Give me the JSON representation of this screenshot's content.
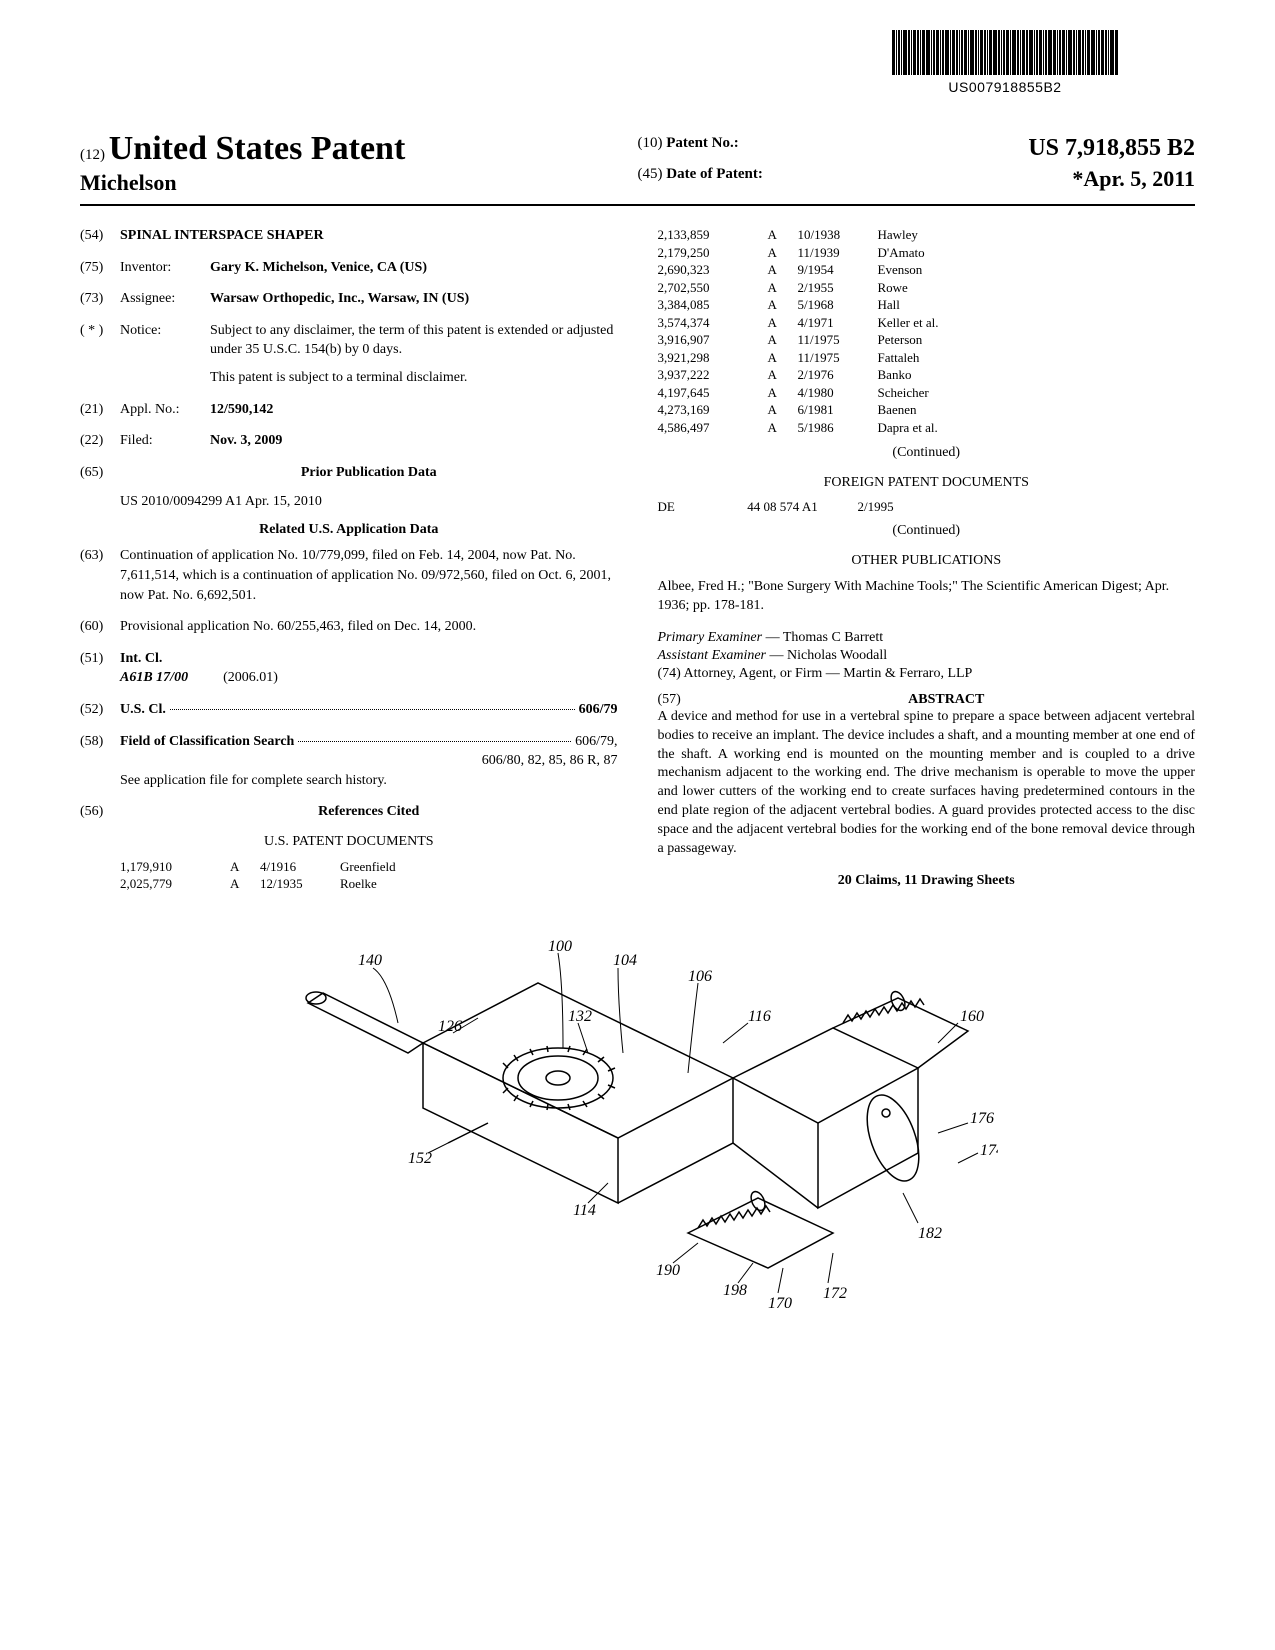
{
  "barcode": {
    "text": "US007918855B2"
  },
  "header": {
    "left": {
      "code": "(12)",
      "country": "United States Patent",
      "author": "Michelson"
    },
    "right": {
      "patent_no_code": "(10)",
      "patent_no_label": "Patent No.:",
      "patent_no_value": "US 7,918,855 B2",
      "date_code": "(45)",
      "date_label": "Date of Patent:",
      "date_value": "*Apr. 5, 2011"
    }
  },
  "left_col": {
    "title": {
      "code": "(54)",
      "value": "SPINAL INTERSPACE SHAPER"
    },
    "inventor": {
      "code": "(75)",
      "label": "Inventor:",
      "value": "Gary K. Michelson, Venice, CA (US)"
    },
    "assignee": {
      "code": "(73)",
      "label": "Assignee:",
      "value": "Warsaw Orthopedic, Inc., Warsaw, IN (US)"
    },
    "notice": {
      "code": "( * )",
      "label": "Notice:",
      "p1": "Subject to any disclaimer, the term of this patent is extended or adjusted under 35 U.S.C. 154(b) by 0 days.",
      "p2": "This patent is subject to a terminal disclaimer."
    },
    "appl_no": {
      "code": "(21)",
      "label": "Appl. No.:",
      "value": "12/590,142"
    },
    "filed": {
      "code": "(22)",
      "label": "Filed:",
      "value": "Nov. 3, 2009"
    },
    "prior_pub": {
      "code": "(65)",
      "heading": "Prior Publication Data",
      "line": "US 2010/0094299 A1      Apr. 15, 2010"
    },
    "related": {
      "heading": "Related U.S. Application Data",
      "p63_code": "(63)",
      "p63": "Continuation of application No. 10/779,099, filed on Feb. 14, 2004, now Pat. No. 7,611,514, which is a continuation of application No. 09/972,560, filed on Oct. 6, 2001, now Pat. No. 6,692,501.",
      "p60_code": "(60)",
      "p60": "Provisional application No. 60/255,463, filed on Dec. 14, 2000."
    },
    "int_cl": {
      "code": "(51)",
      "label": "Int. Cl.",
      "class": "A61B 17/00",
      "year": "(2006.01)"
    },
    "us_cl": {
      "code": "(52)",
      "label": "U.S. Cl.",
      "value": "606/79"
    },
    "field_search": {
      "code": "(58)",
      "label": "Field of Classification Search",
      "value1": "606/79,",
      "value2": "606/80, 82, 85, 86 R, 87",
      "note": "See application file for complete search history."
    },
    "refs_cited": {
      "code": "(56)",
      "heading": "References Cited",
      "subheading": "U.S. PATENT DOCUMENTS",
      "rows": [
        {
          "num": "1,179,910",
          "type": "A",
          "date": "4/1916",
          "name": "Greenfield"
        },
        {
          "num": "2,025,779",
          "type": "A",
          "date": "12/1935",
          "name": "Roelke"
        }
      ]
    }
  },
  "right_col": {
    "refs_cont": [
      {
        "num": "2,133,859",
        "type": "A",
        "date": "10/1938",
        "name": "Hawley"
      },
      {
        "num": "2,179,250",
        "type": "A",
        "date": "11/1939",
        "name": "D'Amato"
      },
      {
        "num": "2,690,323",
        "type": "A",
        "date": "9/1954",
        "name": "Evenson"
      },
      {
        "num": "2,702,550",
        "type": "A",
        "date": "2/1955",
        "name": "Rowe"
      },
      {
        "num": "3,384,085",
        "type": "A",
        "date": "5/1968",
        "name": "Hall"
      },
      {
        "num": "3,574,374",
        "type": "A",
        "date": "4/1971",
        "name": "Keller et al."
      },
      {
        "num": "3,916,907",
        "type": "A",
        "date": "11/1975",
        "name": "Peterson"
      },
      {
        "num": "3,921,298",
        "type": "A",
        "date": "11/1975",
        "name": "Fattaleh"
      },
      {
        "num": "3,937,222",
        "type": "A",
        "date": "2/1976",
        "name": "Banko"
      },
      {
        "num": "4,197,645",
        "type": "A",
        "date": "4/1980",
        "name": "Scheicher"
      },
      {
        "num": "4,273,169",
        "type": "A",
        "date": "6/1981",
        "name": "Baenen"
      },
      {
        "num": "4,586,497",
        "type": "A",
        "date": "5/1986",
        "name": "Dapra et al."
      }
    ],
    "continued1": "(Continued)",
    "foreign_heading": "FOREIGN PATENT DOCUMENTS",
    "foreign_rows": [
      {
        "cc": "DE",
        "num": "44 08 574 A1",
        "date": "2/1995"
      }
    ],
    "continued2": "(Continued)",
    "other_pub_heading": "OTHER PUBLICATIONS",
    "other_pub_text": "Albee, Fred H.; \"Bone Surgery With Machine Tools;\" The Scientific American Digest; Apr. 1936; pp. 178-181.",
    "primary_examiner_label": "Primary Examiner",
    "primary_examiner_value": " — Thomas C Barrett",
    "assistant_examiner_label": "Assistant Examiner",
    "assistant_examiner_value": " — Nicholas Woodall",
    "attorney_label": "(74) Attorney, Agent, or Firm",
    "attorney_value": " — Martin & Ferraro, LLP",
    "abstract_code": "(57)",
    "abstract_heading": "ABSTRACT",
    "abstract_text": "A device and method for use in a vertebral spine to prepare a space between adjacent vertebral bodies to receive an implant. The device includes a shaft, and a mounting member at one end of the shaft. A working end is mounted on the mounting member and is coupled to a drive mechanism adjacent to the working end. The drive mechanism is operable to move the upper and lower cutters of the working end to create surfaces having predetermined contours in the end plate region of the adjacent vertebral bodies. A guard provides protected access to the disc space and the adjacent vertebral bodies for the working end of the bone removal device through a passageway.",
    "claims_line": "20 Claims, 11 Drawing Sheets"
  },
  "figure": {
    "labels": [
      "140",
      "100",
      "104",
      "126",
      "132",
      "106",
      "116",
      "160",
      "152",
      "176",
      "174",
      "114",
      "190",
      "198",
      "170",
      "172",
      "182"
    ]
  },
  "colors": {
    "text": "#000000",
    "background": "#ffffff"
  }
}
